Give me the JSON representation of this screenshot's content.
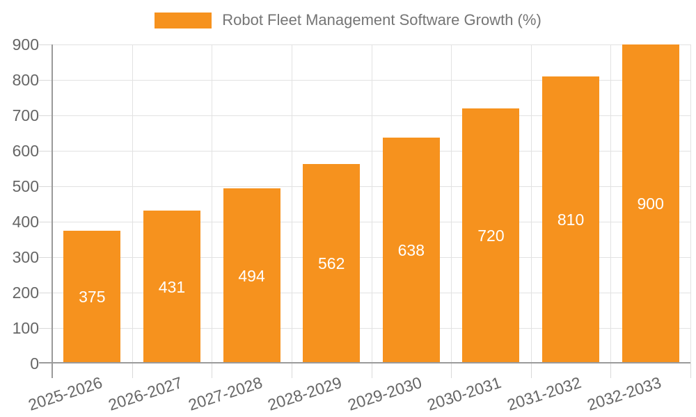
{
  "legend": {
    "label": "Robot Fleet Management Software Growth (%)"
  },
  "chart_data": {
    "type": "bar",
    "title": "Robot Fleet Management Software Growth (%)",
    "categories": [
      "2025-2026",
      "2026-2027",
      "2027-2028",
      "2028-2029",
      "2029-2030",
      "2030-2031",
      "2031-2032",
      "2032-2033"
    ],
    "values": [
      375,
      431,
      494,
      562,
      638,
      720,
      810,
      900
    ],
    "bar_value_labels": [
      "375",
      "431",
      "494",
      "562",
      "638",
      "720",
      "810",
      "900"
    ],
    "xlabel": "",
    "ylabel": "",
    "ylim": [
      0,
      900
    ],
    "yticks": [
      0,
      100,
      200,
      300,
      400,
      500,
      600,
      700,
      800,
      900
    ],
    "grid": true,
    "legend_position": "top-center",
    "x_label_rotation_deg": -18
  },
  "colors": {
    "background": "#FFFFFF",
    "bar": "#F6921E",
    "bar_label_text": "#FFFFFF",
    "gridline": "#E2E2E2",
    "tick_mark": "#D9D9D9",
    "axis_line": "#9A9A9A",
    "tick_text": "#666666",
    "legend_text": "#757575"
  }
}
